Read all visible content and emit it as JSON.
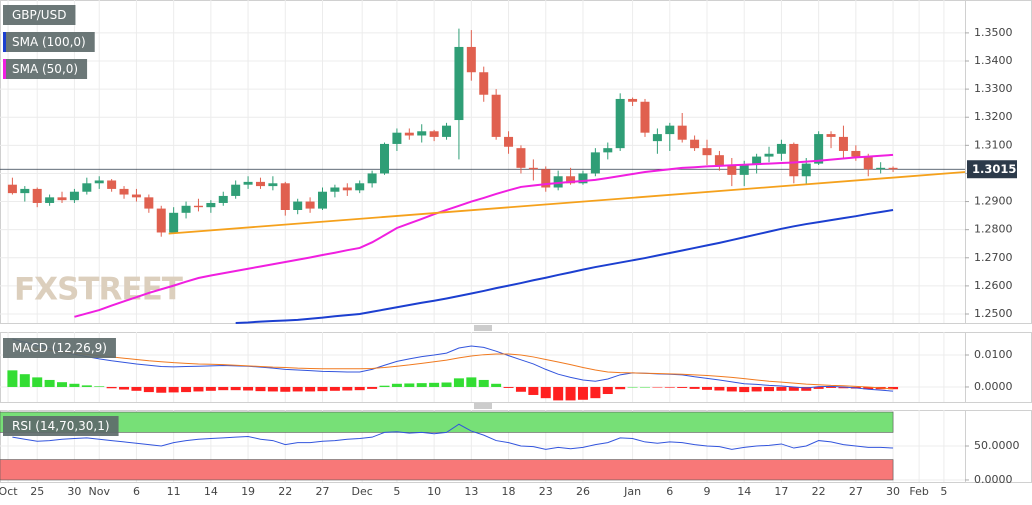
{
  "chart_data": [
    {
      "type": "candlestick",
      "xlim": [
        -1,
        76.8
      ],
      "ylim": [
        1.2468,
        1.3617
      ],
      "yticks": [
        {
          "value": 1.25,
          "label": "1.2500"
        },
        {
          "value": 1.26,
          "label": "1.2600"
        },
        {
          "value": 1.27,
          "label": "1.2700"
        },
        {
          "value": 1.28,
          "label": "1.2800"
        },
        {
          "value": 1.29,
          "label": "1.2900"
        },
        {
          "value": 1.3,
          "label": "1.3000"
        },
        {
          "value": 1.31,
          "label": "1.3100"
        },
        {
          "value": 1.32,
          "label": "1.3200"
        },
        {
          "value": 1.33,
          "label": "1.3300"
        },
        {
          "value": 1.34,
          "label": "1.3400"
        },
        {
          "value": 1.35,
          "label": "1.3500"
        }
      ],
      "grid": true,
      "last_price": 1.3015,
      "watermark": "FXSTREET",
      "series": [
        {
          "name": "GBP/USD",
          "color": "#6b7a7a",
          "up_color": "#2f9e76",
          "down_color": "#e0604f",
          "open": [
            1.296,
            1.293,
            1.2945,
            1.2895,
            1.2915,
            1.2905,
            1.2935,
            1.2965,
            1.2975,
            1.2945,
            1.2925,
            1.2915,
            1.2875,
            1.279,
            1.286,
            1.2885,
            1.288,
            1.2895,
            1.292,
            1.296,
            1.297,
            1.2955,
            1.2965,
            1.287,
            1.29,
            1.2875,
            1.2935,
            1.295,
            1.294,
            1.2965,
            1.3,
            1.3105,
            1.3145,
            1.3135,
            1.315,
            1.313,
            1.319,
            1.345,
            1.336,
            1.328,
            1.313,
            1.309,
            1.302,
            1.3015,
            1.295,
            1.299,
            1.2965,
            1.3,
            1.3075,
            1.309,
            1.3265,
            1.3255,
            1.3115,
            1.314,
            1.317,
            1.312,
            1.309,
            1.3065,
            1.303,
            1.2995,
            1.303,
            1.306,
            1.307,
            1.3105,
            1.299,
            1.3035,
            1.314,
            1.313,
            1.308,
            1.306,
            1.3015,
            1.302
          ],
          "high": [
            1.2985,
            1.2955,
            1.295,
            1.2925,
            1.2935,
            1.2945,
            1.2985,
            1.299,
            1.298,
            1.2955,
            1.2945,
            1.2925,
            1.2885,
            1.288,
            1.29,
            1.291,
            1.2905,
            1.2935,
            1.2975,
            1.299,
            1.2985,
            1.299,
            1.297,
            1.291,
            1.2915,
            1.295,
            1.296,
            1.2965,
            1.2975,
            1.301,
            1.311,
            1.316,
            1.316,
            1.3175,
            1.3155,
            1.318,
            1.3515,
            1.351,
            1.338,
            1.33,
            1.315,
            1.31,
            1.305,
            1.3025,
            1.301,
            1.302,
            1.301,
            1.309,
            1.311,
            1.3285,
            1.327,
            1.3265,
            1.316,
            1.318,
            1.3215,
            1.3135,
            1.312,
            1.308,
            1.3055,
            1.3045,
            1.307,
            1.3095,
            1.312,
            1.311,
            1.3055,
            1.315,
            1.315,
            1.317,
            1.31,
            1.307,
            1.304,
            1.3025
          ],
          "low": [
            1.2925,
            1.29,
            1.288,
            1.2885,
            1.2895,
            1.2895,
            1.2925,
            1.2945,
            1.2935,
            1.291,
            1.29,
            1.286,
            1.2775,
            1.2785,
            1.284,
            1.2865,
            1.286,
            1.2885,
            1.291,
            1.2945,
            1.2945,
            1.294,
            1.285,
            1.2855,
            1.286,
            1.287,
            1.2915,
            1.292,
            1.293,
            1.295,
            1.2995,
            1.308,
            1.312,
            1.311,
            1.3115,
            1.312,
            1.305,
            1.333,
            1.3255,
            1.312,
            1.307,
            1.3,
            1.2975,
            1.2935,
            1.294,
            1.296,
            1.296,
            1.299,
            1.305,
            1.308,
            1.324,
            1.313,
            1.307,
            1.308,
            1.311,
            1.308,
            1.303,
            1.301,
            1.2955,
            1.2955,
            1.3,
            1.304,
            1.3045,
            1.2965,
            1.296,
            1.303,
            1.309,
            1.3055,
            1.3045,
            1.299,
            1.3,
            1.3005
          ],
          "close": [
            1.293,
            1.2945,
            1.2895,
            1.2915,
            1.2905,
            1.2935,
            1.2965,
            1.2975,
            1.2945,
            1.2925,
            1.2915,
            1.2875,
            1.279,
            1.286,
            1.2885,
            1.288,
            1.2895,
            1.292,
            1.296,
            1.297,
            1.2955,
            1.2965,
            1.287,
            1.29,
            1.2875,
            1.2935,
            1.295,
            1.294,
            1.2965,
            1.3,
            1.3105,
            1.3145,
            1.3135,
            1.315,
            1.313,
            1.317,
            1.345,
            1.336,
            1.328,
            1.313,
            1.3095,
            1.302,
            1.3015,
            1.295,
            1.299,
            1.2965,
            1.3,
            1.3075,
            1.309,
            1.3265,
            1.3255,
            1.3145,
            1.314,
            1.317,
            1.312,
            1.309,
            1.3065,
            1.303,
            1.2995,
            1.303,
            1.306,
            1.307,
            1.3105,
            1.299,
            1.3035,
            1.314,
            1.313,
            1.308,
            1.306,
            1.3015,
            1.302,
            1.3015
          ]
        },
        {
          "name": "SMA (100,0)",
          "color": "#1c3fd0",
          "values": [
            null,
            null,
            null,
            null,
            null,
            null,
            null,
            null,
            null,
            null,
            null,
            null,
            null,
            null,
            null,
            null,
            null,
            null,
            1.2468,
            1.247,
            1.2473,
            1.2475,
            1.2477,
            1.2479,
            1.2483,
            1.2487,
            1.2492,
            1.2496,
            1.25,
            1.2508,
            1.2516,
            1.2524,
            1.2532,
            1.254,
            1.2547,
            1.2555,
            1.2564,
            1.2573,
            1.2582,
            1.2592,
            1.2601,
            1.261,
            1.262,
            1.2629,
            1.2639,
            1.2648,
            1.2658,
            1.2667,
            1.2675,
            1.2683,
            1.2691,
            1.2699,
            1.2708,
            1.2717,
            1.2726,
            1.2735,
            1.2744,
            1.2753,
            1.2763,
            1.2773,
            1.2783,
            1.2793,
            1.2803,
            1.2812,
            1.282,
            1.2827,
            1.2834,
            1.2841,
            1.2848,
            1.2856,
            1.2863,
            1.287
          ]
        },
        {
          "name": "SMA (50,0)",
          "color": "#f01fe0",
          "values": [
            null,
            null,
            null,
            null,
            null,
            1.249,
            1.2502,
            1.2514,
            1.253,
            1.2545,
            1.256,
            1.2575,
            1.2588,
            1.2601,
            1.2615,
            1.2628,
            1.2637,
            1.2645,
            1.2653,
            1.2661,
            1.2669,
            1.2677,
            1.2685,
            1.2693,
            1.2701,
            1.271,
            1.2718,
            1.2727,
            1.2735,
            1.2755,
            1.278,
            1.2806,
            1.2822,
            1.2838,
            1.2855,
            1.287,
            1.2885,
            1.29,
            1.2913,
            1.2927,
            1.294,
            1.2952,
            1.2957,
            1.2962,
            1.2966,
            1.297,
            1.2973,
            1.2977,
            1.2984,
            1.2991,
            1.2998,
            1.3005,
            1.301,
            1.3015,
            1.302,
            1.3022,
            1.3025,
            1.3027,
            1.3029,
            1.3031,
            1.3033,
            1.3035,
            1.3037,
            1.3039,
            1.3042,
            1.3045,
            1.3049,
            1.3053,
            1.3057,
            1.306,
            1.3063,
            1.3066
          ]
        },
        {
          "color": "#f5a11c",
          "x": [
            12.6,
            76.8
          ],
          "values": [
            1.2786,
            1.3005
          ]
        }
      ]
    },
    {
      "type": "macd",
      "title": "MACD (12,26,9)",
      "ylim": [
        -0.0047,
        0.0172
      ],
      "yticks": [
        {
          "value": 0,
          "label": "0.0000"
        },
        {
          "value": 0.01,
          "label": "0.0100"
        }
      ],
      "series": [
        {
          "kind": "histogram",
          "up_color": "#33dd33",
          "down_color": "#ff2020",
          "values": [
            0.0052,
            0.004,
            0.003,
            0.0022,
            0.0015,
            0.001,
            0.0005,
            0.0002,
            -0.0004,
            -0.0008,
            -0.0012,
            -0.0016,
            -0.0018,
            -0.0017,
            -0.0016,
            -0.0014,
            -0.0012,
            -0.001,
            -0.001,
            -0.0011,
            -0.0013,
            -0.0014,
            -0.0015,
            -0.0014,
            -0.0014,
            -0.0013,
            -0.0012,
            -0.0011,
            -0.001,
            -0.0006,
            0.0004,
            0.001,
            0.0011,
            0.0012,
            0.0013,
            0.0014,
            0.0027,
            0.003,
            0.0022,
            0.001,
            -0.0003,
            -0.0015,
            -0.0025,
            -0.0035,
            -0.0042,
            -0.0042,
            -0.004,
            -0.0035,
            -0.0022,
            -0.0007,
            0.0,
            0.0,
            -0.0001,
            -0.0002,
            -0.0003,
            -0.0006,
            -0.0009,
            -0.0011,
            -0.0014,
            -0.0016,
            -0.0014,
            -0.0013,
            -0.0012,
            -0.0012,
            -0.0012,
            -0.0006,
            -0.0003,
            -0.0004,
            -0.0005,
            -0.0007,
            -0.0007,
            -0.0007
          ]
        },
        {
          "color": "#3355dd",
          "values": [
            0.015,
            0.014,
            0.013,
            0.012,
            0.011,
            0.0102,
            0.0095,
            0.0088,
            0.0082,
            0.0077,
            0.0072,
            0.0068,
            0.0064,
            0.0063,
            0.0064,
            0.0065,
            0.0066,
            0.0067,
            0.0066,
            0.0065,
            0.0062,
            0.0059,
            0.0055,
            0.0053,
            0.0051,
            0.0049,
            0.0048,
            0.0047,
            0.0047,
            0.0055,
            0.0068,
            0.008,
            0.0088,
            0.0095,
            0.01,
            0.0106,
            0.0122,
            0.0128,
            0.0124,
            0.0112,
            0.0098,
            0.0085,
            0.0072,
            0.0055,
            0.004,
            0.003,
            0.0022,
            0.0018,
            0.0025,
            0.0038,
            0.0044,
            0.0043,
            0.0041,
            0.004,
            0.0038,
            0.0032,
            0.0027,
            0.0022,
            0.0016,
            0.001,
            0.0008,
            0.0005,
            0.0003,
            0.0,
            -0.0003,
            0.0001,
            0.0002,
            0.0,
            -0.0003,
            -0.0007,
            -0.001,
            -0.0013
          ]
        },
        {
          "color": "#f07a20",
          "values": [
            0.0125,
            0.0122,
            0.0118,
            0.0114,
            0.011,
            0.0106,
            0.0102,
            0.0098,
            0.0094,
            0.009,
            0.0086,
            0.0082,
            0.0079,
            0.0076,
            0.0074,
            0.0072,
            0.0071,
            0.007,
            0.0068,
            0.0066,
            0.0064,
            0.0062,
            0.0061,
            0.0059,
            0.0058,
            0.0057,
            0.0057,
            0.0057,
            0.0057,
            0.0058,
            0.0061,
            0.0065,
            0.0069,
            0.0074,
            0.0079,
            0.0084,
            0.0091,
            0.0097,
            0.0101,
            0.0103,
            0.0103,
            0.01,
            0.0094,
            0.0086,
            0.0078,
            0.007,
            0.0061,
            0.0053,
            0.0047,
            0.0045,
            0.0044,
            0.0043,
            0.0042,
            0.0041,
            0.004,
            0.0038,
            0.0036,
            0.0033,
            0.003,
            0.0026,
            0.0022,
            0.0018,
            0.0015,
            0.0012,
            0.0009,
            0.0007,
            0.0005,
            0.0004,
            0.0002,
            0.0,
            -0.0003,
            -0.0006
          ]
        }
      ]
    },
    {
      "type": "rsi",
      "title": "RSI (14,70,30,1)",
      "ylim": [
        -3,
        103
      ],
      "yticks": [
        {
          "value": 0,
          "label": "0.0000"
        },
        {
          "value": 50,
          "label": "50.0000"
        }
      ],
      "bands": [
        {
          "range": [
            70,
            100
          ],
          "color": "#77e077"
        },
        {
          "range": [
            0,
            30
          ],
          "color": "#f87878"
        }
      ],
      "xticks": [
        {
          "value": -0.35,
          "label": "Oct"
        },
        {
          "value": 2,
          "label": "25"
        },
        {
          "value": 5,
          "label": "30"
        },
        {
          "value": 7,
          "label": "Nov"
        },
        {
          "value": 10,
          "label": "6"
        },
        {
          "value": 13,
          "label": "11"
        },
        {
          "value": 16,
          "label": "14"
        },
        {
          "value": 19,
          "label": "19"
        },
        {
          "value": 22,
          "label": "22"
        },
        {
          "value": 25,
          "label": "27"
        },
        {
          "value": 28.2,
          "label": "Dec"
        },
        {
          "value": 31,
          "label": "5"
        },
        {
          "value": 34,
          "label": "10"
        },
        {
          "value": 37,
          "label": "13"
        },
        {
          "value": 40,
          "label": "18"
        },
        {
          "value": 43,
          "label": "23"
        },
        {
          "value": 46,
          "label": "26"
        },
        {
          "value": 50,
          "label": "Jan"
        },
        {
          "value": 53,
          "label": "6"
        },
        {
          "value": 56,
          "label": "9"
        },
        {
          "value": 59,
          "label": "14"
        },
        {
          "value": 62,
          "label": "17"
        },
        {
          "value": 65,
          "label": "22"
        },
        {
          "value": 68,
          "label": "27"
        },
        {
          "value": 71,
          "label": "30"
        },
        {
          "value": 73.1,
          "label": "Feb"
        },
        {
          "value": 75.1,
          "label": "5"
        }
      ],
      "series": [
        {
          "color": "#3355dd",
          "values": [
            63,
            60,
            57,
            58,
            60,
            61,
            62,
            60,
            58,
            56,
            54,
            52,
            50,
            55,
            58,
            60,
            61,
            62,
            63,
            64,
            60,
            58,
            52,
            55,
            55,
            57,
            58,
            60,
            61,
            63,
            70,
            71,
            69,
            70,
            68,
            70,
            82,
            72,
            66,
            58,
            55,
            50,
            49,
            45,
            48,
            46,
            48,
            52,
            55,
            62,
            61,
            56,
            54,
            56,
            55,
            52,
            50,
            49,
            45,
            48,
            50,
            51,
            53,
            47,
            50,
            58,
            56,
            52,
            50,
            48,
            48,
            47
          ]
        }
      ]
    }
  ]
}
